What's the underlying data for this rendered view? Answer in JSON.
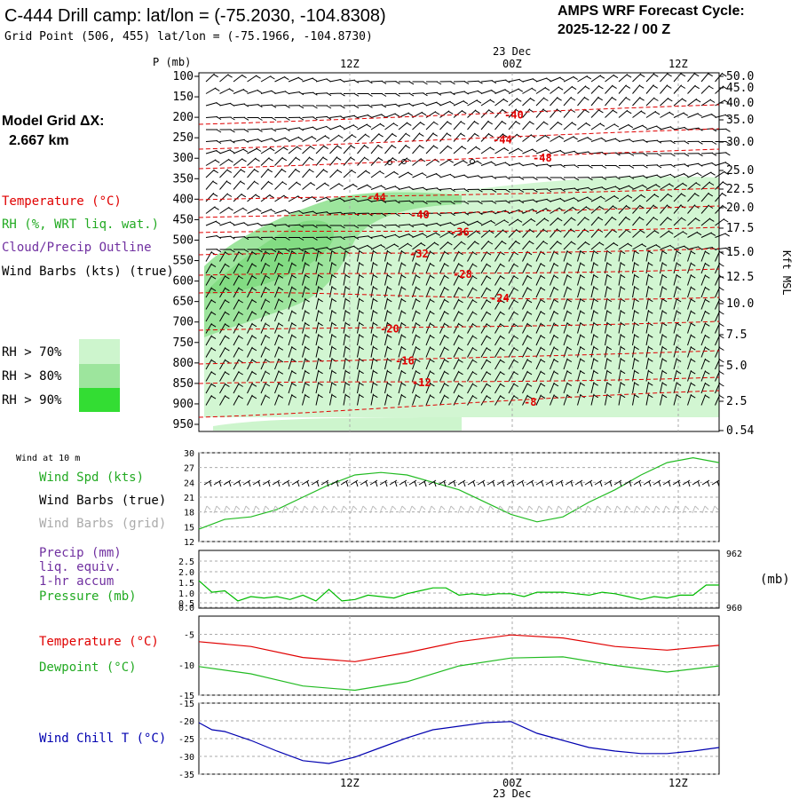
{
  "header": {
    "title": "C-444 Drill camp:  lat/lon = (-75.2030, -104.8308)",
    "subtitle": "Grid Point (506, 455) lat/lon = (-75.1966, -104.8730)",
    "forecast_label": "AMPS WRF Forecast Cycle:",
    "forecast_cycle": "2025-12-22 / 00  Z"
  },
  "model_grid": {
    "label": "Model Grid ΔX:",
    "value": "2.667 km"
  },
  "legend": {
    "temperature": "Temperature (°C)",
    "rh": "RH (%, WRT liq. wat.)",
    "cloud": "Cloud/Precip Outline",
    "wind_barbs": "Wind Barbs (kts) (true)",
    "rh70": "RH > 70%",
    "rh80": "RH > 80%",
    "rh90": "RH > 90%"
  },
  "colors": {
    "temperature": "#e00000",
    "rh": "#22aa22",
    "cloud": "#7030a0",
    "rh70": "#cdf5cd",
    "rh80": "#9de59d",
    "rh90": "#33dd33",
    "pressure": "#00bb00",
    "windchill": "#0000b0",
    "grid": "#aaaaaa"
  },
  "time_axis": {
    "date_label": "23 Dec",
    "ticks": [
      "12Z",
      "00Z",
      "12Z"
    ]
  },
  "chart_data": [
    {
      "type": "contour",
      "name": "vertical-cross-section",
      "ylabel": "P (mb)",
      "right_label": "Kft MSL",
      "pressure_ticks": [
        100,
        150,
        200,
        250,
        300,
        350,
        400,
        450,
        500,
        550,
        600,
        650,
        700,
        750,
        800,
        850,
        900,
        950
      ],
      "height_ticks": [
        "50.0",
        "45.0",
        "40.0",
        "35.0",
        "30.0",
        "25.0",
        "22.5",
        "20.0",
        "17.5",
        "15.0",
        "12.5",
        "10.0",
        "7.5",
        "5.0",
        "2.5",
        "0.54"
      ],
      "temperature_contour_labels": [
        "-40",
        "-44",
        "-48",
        "-44",
        "-40",
        "-36",
        "-32",
        "-28",
        "-24",
        "-20",
        "-16",
        "-12",
        "-8"
      ]
    },
    {
      "type": "line",
      "name": "wind-10m",
      "title": "Wind at 10 m",
      "labels": [
        "Wind Spd (kts)",
        "Wind Barbs (true)",
        "Wind Barbs (grid)"
      ],
      "y_ticks": [
        "30",
        "27",
        "24",
        "21",
        "18",
        "15",
        "12"
      ],
      "ylim": [
        12,
        30
      ],
      "x": [
        0,
        0.05,
        0.1,
        0.15,
        0.2,
        0.25,
        0.3,
        0.35,
        0.4,
        0.45,
        0.5,
        0.55,
        0.6,
        0.65,
        0.7,
        0.75,
        0.8,
        0.85,
        0.9,
        0.95,
        1.0
      ],
      "values": [
        14.5,
        16.5,
        17,
        18.5,
        21,
        23.5,
        25.5,
        26,
        25.5,
        24,
        22.5,
        20,
        17.5,
        16,
        17,
        20,
        22.5,
        25.5,
        28,
        29,
        28
      ]
    },
    {
      "type": "line",
      "name": "precip-pressure",
      "labels": [
        "Precip (mm)",
        "liq. equiv.",
        "1-hr accum",
        "Pressure (mb)"
      ],
      "y_ticks": [
        "2.5",
        "2.0",
        "1.5",
        "1.0",
        "0.5",
        "0.0"
      ],
      "right_ticks": [
        "962",
        "960"
      ],
      "right_unit": "(mb)",
      "ylim": [
        960,
        962
      ],
      "x": [
        0,
        0.025,
        0.05,
        0.075,
        0.1,
        0.125,
        0.15,
        0.175,
        0.2,
        0.225,
        0.25,
        0.275,
        0.3,
        0.325,
        0.35,
        0.375,
        0.4,
        0.425,
        0.45,
        0.475,
        0.5,
        0.525,
        0.55,
        0.575,
        0.6,
        0.625,
        0.65,
        0.675,
        0.7,
        0.725,
        0.75,
        0.775,
        0.8,
        0.825,
        0.85,
        0.875,
        0.9,
        0.925,
        0.95,
        0.975,
        1.0
      ],
      "values": [
        960.95,
        960.55,
        960.6,
        960.25,
        960.4,
        960.35,
        960.4,
        960.3,
        960.45,
        960.25,
        960.65,
        960.25,
        960.3,
        960.45,
        960.4,
        960.35,
        960.5,
        960.6,
        960.7,
        960.7,
        960.45,
        960.5,
        960.45,
        960.5,
        960.5,
        960.4,
        960.55,
        960.55,
        960.55,
        960.5,
        960.45,
        960.55,
        960.5,
        960.4,
        960.3,
        960.4,
        960.35,
        960.45,
        960.45,
        960.8,
        960.8
      ]
    },
    {
      "type": "line",
      "name": "temperature-dewpoint",
      "labels": [
        "Temperature (°C)",
        "Dewpoint (°C)"
      ],
      "y_ticks": [
        "-5",
        "-10",
        "-15"
      ],
      "ylim": [
        -15,
        -2
      ],
      "x": [
        0,
        0.1,
        0.2,
        0.3,
        0.4,
        0.5,
        0.6,
        0.7,
        0.8,
        0.9,
        1.0
      ],
      "series": [
        {
          "name": "Temperature",
          "values": [
            -6.2,
            -7.0,
            -8.8,
            -9.5,
            -8.0,
            -6.2,
            -5.1,
            -5.6,
            -7.0,
            -7.6,
            -6.8
          ]
        },
        {
          "name": "Dewpoint",
          "values": [
            -10.3,
            -11.5,
            -13.5,
            -14.2,
            -12.8,
            -10.2,
            -8.9,
            -8.7,
            -10.1,
            -11.2,
            -10.2
          ]
        }
      ]
    },
    {
      "type": "line",
      "name": "wind-chill",
      "labels": [
        "Wind Chill T (°C)"
      ],
      "y_ticks": [
        "-15",
        "-20",
        "-25",
        "-30",
        "-35"
      ],
      "ylim": [
        -35,
        -15
      ],
      "x": [
        0,
        0.025,
        0.05,
        0.1,
        0.15,
        0.2,
        0.25,
        0.3,
        0.35,
        0.4,
        0.45,
        0.5,
        0.55,
        0.6,
        0.65,
        0.7,
        0.75,
        0.8,
        0.85,
        0.9,
        0.95,
        1.0
      ],
      "values": [
        -20.5,
        -22.5,
        -23,
        -25.5,
        -28.5,
        -31.2,
        -32,
        -30.2,
        -27.5,
        -24.8,
        -22.5,
        -21.5,
        -20.5,
        -20.2,
        -23.5,
        -25.5,
        -27.5,
        -28.5,
        -29.2,
        -29.2,
        -28.5,
        -27.5
      ]
    }
  ]
}
